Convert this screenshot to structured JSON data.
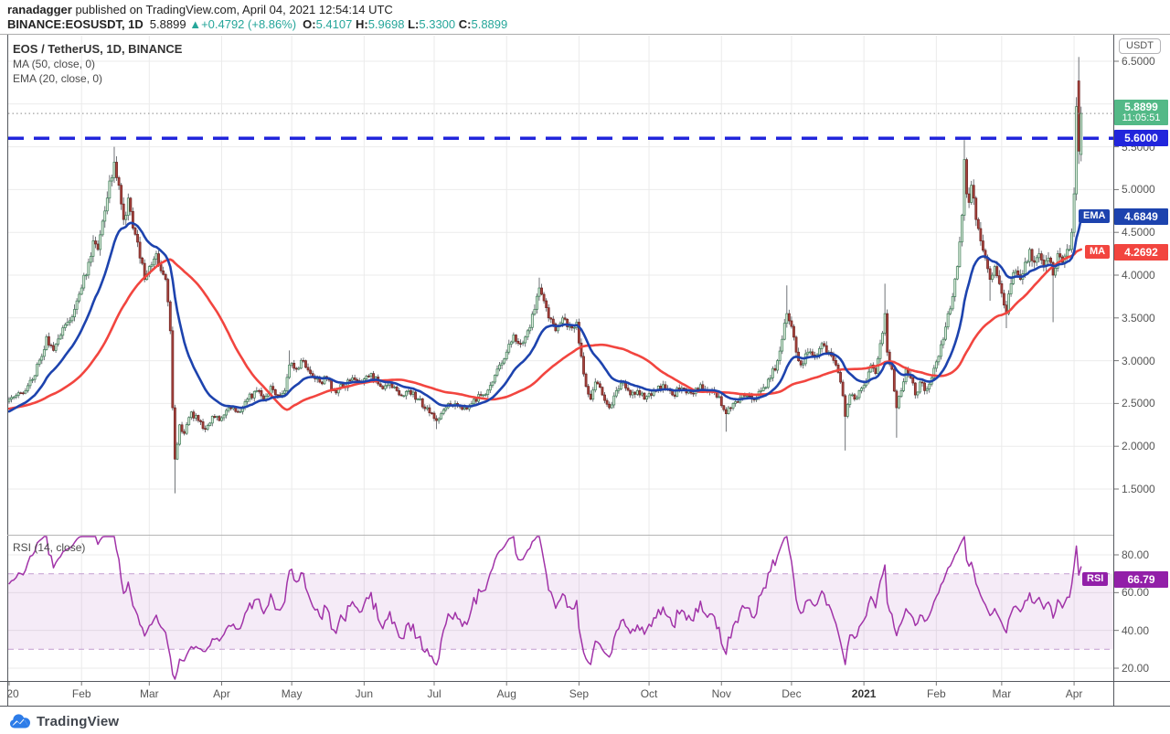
{
  "header": {
    "author": "ranadagger",
    "published": "published on TradingView.com, April 04, 2021 12:54:14 UTC",
    "symbol": "BINANCE:EOSUSDT, 1D",
    "last_price": "5.8899",
    "change_arrow": "▲",
    "change": "+0.4792 (+8.86%)",
    "o_label": "O:",
    "o_value": "5.4107",
    "h_label": "H:",
    "h_value": "5.9698",
    "l_label": "L:",
    "l_value": "5.3300",
    "c_label": "C:",
    "c_value": "5.8899"
  },
  "legend": {
    "title": "EOS / TetherUS, 1D, BINANCE",
    "ma": "MA (50, close, 0)",
    "ema": "EMA (20, close, 0)"
  },
  "rsi_panel": {
    "legend": "RSI (14, close)",
    "ticks": [
      {
        "label": "80.00",
        "value": 80
      },
      {
        "label": "60.00",
        "value": 60
      },
      {
        "label": "40.00",
        "value": 40
      },
      {
        "label": "20.00",
        "value": 20
      }
    ],
    "band": [
      30,
      70
    ]
  },
  "price_axis": {
    "currency": "USDT",
    "ticks": [
      {
        "label": "6.5000",
        "value": 6.5
      },
      {
        "label": "6.0000",
        "value": 6.0
      },
      {
        "label": "5.5000",
        "value": 5.5
      },
      {
        "label": "5.0000",
        "value": 5.0
      },
      {
        "label": "4.5000",
        "value": 4.5
      },
      {
        "label": "4.0000",
        "value": 4.0
      },
      {
        "label": "3.5000",
        "value": 3.5
      },
      {
        "label": "3.0000",
        "value": 3.0
      },
      {
        "label": "2.5000",
        "value": 2.5
      },
      {
        "label": "2.0000",
        "value": 2.0
      },
      {
        "label": "1.5000",
        "value": 1.5
      }
    ]
  },
  "badges": {
    "last": {
      "value": "5.8899",
      "countdown": "11:05:51",
      "price": 5.8899
    },
    "level": {
      "value": "5.6000",
      "price": 5.6
    },
    "ema": {
      "chip": "EMA",
      "value": "4.6849",
      "price": 4.6849
    },
    "ma": {
      "chip": "MA",
      "value": "4.2692",
      "price": 4.2692
    },
    "rsi": {
      "chip": "RSI",
      "value": "66.79",
      "level": 66.79
    }
  },
  "time_axis": {
    "labels": [
      {
        "label": "20",
        "day": 0,
        "bold": false
      },
      {
        "label": "Feb",
        "day": 31,
        "bold": false
      },
      {
        "label": "Mar",
        "day": 60,
        "bold": false
      },
      {
        "label": "Apr",
        "day": 91,
        "bold": false
      },
      {
        "label": "May",
        "day": 121,
        "bold": false
      },
      {
        "label": "Jun",
        "day": 152,
        "bold": false
      },
      {
        "label": "Jul",
        "day": 182,
        "bold": false
      },
      {
        "label": "Aug",
        "day": 213,
        "bold": false
      },
      {
        "label": "Sep",
        "day": 244,
        "bold": false
      },
      {
        "label": "Oct",
        "day": 274,
        "bold": false
      },
      {
        "label": "Nov",
        "day": 305,
        "bold": false
      },
      {
        "label": "Dec",
        "day": 335,
        "bold": false
      },
      {
        "label": "2021",
        "day": 366,
        "bold": true
      },
      {
        "label": "Feb",
        "day": 397,
        "bold": false
      },
      {
        "label": "Mar",
        "day": 425,
        "bold": false
      },
      {
        "label": "Apr",
        "day": 456,
        "bold": false
      }
    ]
  },
  "footer": {
    "brand": "TradingView"
  },
  "colors": {
    "up": "#53b987",
    "up_fill": "#dcecdc",
    "up_border": "#3a7a54",
    "down_fill": "#a8423c",
    "down_border": "#6d2422",
    "wick": "#5f6368",
    "ma": "#f2453f",
    "ema": "#1d43ae",
    "level_line": "#2125dc",
    "last_badge": "#53b987",
    "rsi_line": "#a133a8",
    "rsi_badge": "#921fa8",
    "rsi_band_fill": "rgba(155,60,180,0.10)",
    "rsi_band_edge": "#c9a8d6",
    "grid": "#ebebeb",
    "axis_text": "#555555",
    "header_teal": "#26a69a"
  },
  "chart_data": {
    "type": "candlestick",
    "symbol": "BINANCE:EOSUSDT",
    "timeframe": "1D",
    "title": "EOS / TetherUS, 1D, BINANCE",
    "x_range": {
      "start": "2020-01-01",
      "end": "2021-04-04",
      "days": 460
    },
    "y_range": [
      1.2,
      6.7
    ],
    "grid": true,
    "level_line": 5.6,
    "last_candle": {
      "open": 5.4107,
      "high": 5.9698,
      "low": 5.33,
      "close": 5.8899
    },
    "change": {
      "abs": 0.4792,
      "pct": 8.86
    },
    "indicators": [
      {
        "name": "MA",
        "period": 50,
        "source": "close",
        "offset": 0,
        "last": 4.2692
      },
      {
        "name": "EMA",
        "period": 20,
        "source": "close",
        "offset": 0,
        "last": 4.6849
      },
      {
        "name": "RSI",
        "period": 14,
        "source": "close",
        "last": 66.79,
        "band": [
          30,
          70
        ]
      }
    ],
    "close_anchors": [
      [
        0,
        2.55
      ],
      [
        6,
        2.62
      ],
      [
        10,
        2.78
      ],
      [
        14,
        3.05
      ],
      [
        16,
        3.28
      ],
      [
        19,
        3.12
      ],
      [
        24,
        3.42
      ],
      [
        28,
        3.6
      ],
      [
        31,
        3.85
      ],
      [
        34,
        4.15
      ],
      [
        36,
        4.4
      ],
      [
        38,
        4.3
      ],
      [
        41,
        4.75
      ],
      [
        43,
        5.1
      ],
      [
        45,
        5.32
      ],
      [
        47,
        5.05
      ],
      [
        49,
        4.65
      ],
      [
        51,
        4.9
      ],
      [
        53,
        4.55
      ],
      [
        56,
        4.2
      ],
      [
        58,
        3.95
      ],
      [
        60,
        4.1
      ],
      [
        63,
        4.25
      ],
      [
        65,
        4.05
      ],
      [
        67,
        3.95
      ],
      [
        69,
        3.35
      ],
      [
        70,
        2.45
      ],
      [
        71,
        1.85
      ],
      [
        73,
        2.25
      ],
      [
        75,
        2.15
      ],
      [
        78,
        2.4
      ],
      [
        81,
        2.3
      ],
      [
        84,
        2.2
      ],
      [
        87,
        2.35
      ],
      [
        90,
        2.3
      ],
      [
        94,
        2.45
      ],
      [
        98,
        2.4
      ],
      [
        102,
        2.55
      ],
      [
        106,
        2.65
      ],
      [
        109,
        2.55
      ],
      [
        112,
        2.7
      ],
      [
        115,
        2.6
      ],
      [
        118,
        2.65
      ],
      [
        120,
        2.95
      ],
      [
        123,
        2.9
      ],
      [
        126,
        3.0
      ],
      [
        129,
        2.85
      ],
      [
        133,
        2.75
      ],
      [
        136,
        2.8
      ],
      [
        139,
        2.65
      ],
      [
        143,
        2.7
      ],
      [
        147,
        2.8
      ],
      [
        151,
        2.75
      ],
      [
        155,
        2.85
      ],
      [
        159,
        2.7
      ],
      [
        163,
        2.75
      ],
      [
        167,
        2.6
      ],
      [
        171,
        2.65
      ],
      [
        175,
        2.55
      ],
      [
        179,
        2.45
      ],
      [
        183,
        2.3
      ],
      [
        187,
        2.45
      ],
      [
        191,
        2.5
      ],
      [
        195,
        2.45
      ],
      [
        199,
        2.55
      ],
      [
        203,
        2.6
      ],
      [
        207,
        2.75
      ],
      [
        210,
        2.95
      ],
      [
        213,
        3.1
      ],
      [
        216,
        3.3
      ],
      [
        219,
        3.2
      ],
      [
        222,
        3.35
      ],
      [
        225,
        3.6
      ],
      [
        227,
        3.85
      ],
      [
        229,
        3.7
      ],
      [
        231,
        3.5
      ],
      [
        234,
        3.35
      ],
      [
        237,
        3.5
      ],
      [
        240,
        3.4
      ],
      [
        243,
        3.45
      ],
      [
        245,
        3.05
      ],
      [
        247,
        2.7
      ],
      [
        249,
        2.55
      ],
      [
        251,
        2.75
      ],
      [
        254,
        2.6
      ],
      [
        257,
        2.45
      ],
      [
        260,
        2.65
      ],
      [
        263,
        2.75
      ],
      [
        266,
        2.6
      ],
      [
        269,
        2.65
      ],
      [
        272,
        2.55
      ],
      [
        276,
        2.65
      ],
      [
        280,
        2.72
      ],
      [
        284,
        2.6
      ],
      [
        288,
        2.68
      ],
      [
        292,
        2.62
      ],
      [
        296,
        2.72
      ],
      [
        300,
        2.65
      ],
      [
        304,
        2.58
      ],
      [
        307,
        2.38
      ],
      [
        310,
        2.5
      ],
      [
        314,
        2.6
      ],
      [
        318,
        2.55
      ],
      [
        322,
        2.65
      ],
      [
        326,
        2.8
      ],
      [
        329,
        3.0
      ],
      [
        331,
        3.25
      ],
      [
        333,
        3.55
      ],
      [
        335,
        3.4
      ],
      [
        337,
        3.1
      ],
      [
        339,
        2.95
      ],
      [
        342,
        3.1
      ],
      [
        345,
        3.05
      ],
      [
        348,
        3.2
      ],
      [
        351,
        3.1
      ],
      [
        354,
        2.95
      ],
      [
        356,
        2.75
      ],
      [
        358,
        2.35
      ],
      [
        360,
        2.6
      ],
      [
        362,
        2.55
      ],
      [
        364,
        2.65
      ],
      [
        367,
        2.75
      ],
      [
        369,
        2.95
      ],
      [
        371,
        2.85
      ],
      [
        373,
        3.2
      ],
      [
        375,
        3.55
      ],
      [
        376,
        3.1
      ],
      [
        378,
        2.9
      ],
      [
        380,
        2.45
      ],
      [
        382,
        2.65
      ],
      [
        384,
        2.9
      ],
      [
        386,
        2.8
      ],
      [
        388,
        2.6
      ],
      [
        390,
        2.75
      ],
      [
        392,
        2.65
      ],
      [
        395,
        2.8
      ],
      [
        398,
        3.05
      ],
      [
        400,
        3.25
      ],
      [
        402,
        3.55
      ],
      [
        404,
        3.75
      ],
      [
        406,
        4.1
      ],
      [
        408,
        4.7
      ],
      [
        409,
        5.35
      ],
      [
        410,
        4.95
      ],
      [
        411,
        4.85
      ],
      [
        412,
        5.05
      ],
      [
        413,
        4.9
      ],
      [
        414,
        4.65
      ],
      [
        416,
        4.4
      ],
      [
        418,
        4.2
      ],
      [
        420,
        3.95
      ],
      [
        422,
        4.1
      ],
      [
        424,
        3.9
      ],
      [
        426,
        3.65
      ],
      [
        427,
        3.55
      ],
      [
        429,
        3.9
      ],
      [
        431,
        4.05
      ],
      [
        433,
        3.95
      ],
      [
        435,
        4.15
      ],
      [
        437,
        4.3
      ],
      [
        439,
        4.15
      ],
      [
        441,
        4.25
      ],
      [
        443,
        4.1
      ],
      [
        445,
        4.2
      ],
      [
        447,
        4.0
      ],
      [
        449,
        4.25
      ],
      [
        451,
        4.15
      ],
      [
        453,
        4.3
      ],
      [
        454,
        4.3
      ],
      [
        455,
        4.5
      ],
      [
        456,
        4.95
      ],
      [
        457,
        5.97
      ],
      [
        458,
        5.45
      ],
      [
        459,
        5.8899
      ]
    ],
    "wick_overrides": {
      "45": {
        "high": 5.5
      },
      "71": {
        "low": 1.45
      },
      "120": {
        "high": 3.12
      },
      "183": {
        "low": 2.2
      },
      "227": {
        "high": 3.97
      },
      "307": {
        "low": 2.17
      },
      "333": {
        "high": 3.88
      },
      "358": {
        "low": 1.95
      },
      "375": {
        "high": 3.9
      },
      "380": {
        "low": 2.1
      },
      "409": {
        "high": 5.58
      },
      "420": {
        "low": 3.7
      },
      "427": {
        "low": 3.38
      },
      "447": {
        "low": 3.45
      },
      "457": {
        "high": 6.08
      }
    },
    "candle_overrides": {
      "458": {
        "open": 6.27,
        "high": 6.55,
        "low": 5.3,
        "close": 5.45
      },
      "459": {
        "open": 5.4107,
        "high": 5.9698,
        "low": 5.33,
        "close": 5.8899
      }
    },
    "seed": 11,
    "noise": 0.016
  }
}
